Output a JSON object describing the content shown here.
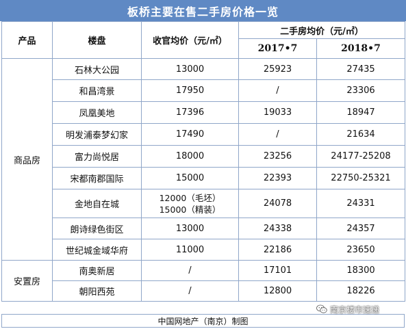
{
  "title": "板桥主要在售二手房价格一览",
  "headers": {
    "product": "产品",
    "project": "楼盘",
    "official_price": "收官均价（元/㎡）",
    "secondhand_price": "二手房均价（元/㎡）",
    "year1": "2017•7",
    "year2": "2018•7"
  },
  "groups": [
    {
      "name": "商品房",
      "rows": [
        {
          "project": "石林大公园",
          "official": "13000",
          "p2017": "25923",
          "p2018": "27435"
        },
        {
          "project": "和昌湾景",
          "official": "17950",
          "p2017": "/",
          "p2018": "23306"
        },
        {
          "project": "凤凰美地",
          "official": "17396",
          "p2017": "19033",
          "p2018": "18947"
        },
        {
          "project": "明发浦泰梦幻家",
          "official": "17490",
          "p2017": "/",
          "p2018": "21634"
        },
        {
          "project": "富力尚悦居",
          "official": "18000",
          "p2017": "23256",
          "p2018": "24177-25208"
        },
        {
          "project": "宋都南郡国际",
          "official": "15000",
          "p2017": "22393",
          "p2018": "22750-25321"
        },
        {
          "project": "金地自在城",
          "official": "12000（毛坯）",
          "official2": "15000（精装）",
          "p2017": "24078",
          "p2018": "24331"
        },
        {
          "project": "朗诗绿色街区",
          "official": "13000",
          "p2017": "24338",
          "p2018": "24357"
        },
        {
          "project": "世纪城金域华府",
          "official": "11000",
          "p2017": "22186",
          "p2018": "23650"
        }
      ]
    },
    {
      "name": "安置房",
      "rows": [
        {
          "project": "南奥新居",
          "official": "/",
          "p2017": "17101",
          "p2018": "18300"
        },
        {
          "project": "朝阳西苑",
          "official": "/",
          "p2017": "12800",
          "p2018": "18226"
        }
      ]
    }
  ],
  "footer": "中国网地产（南京）制图",
  "watermark": {
    "text": "南京楼市速递",
    "icon": "wechat-icon"
  }
}
